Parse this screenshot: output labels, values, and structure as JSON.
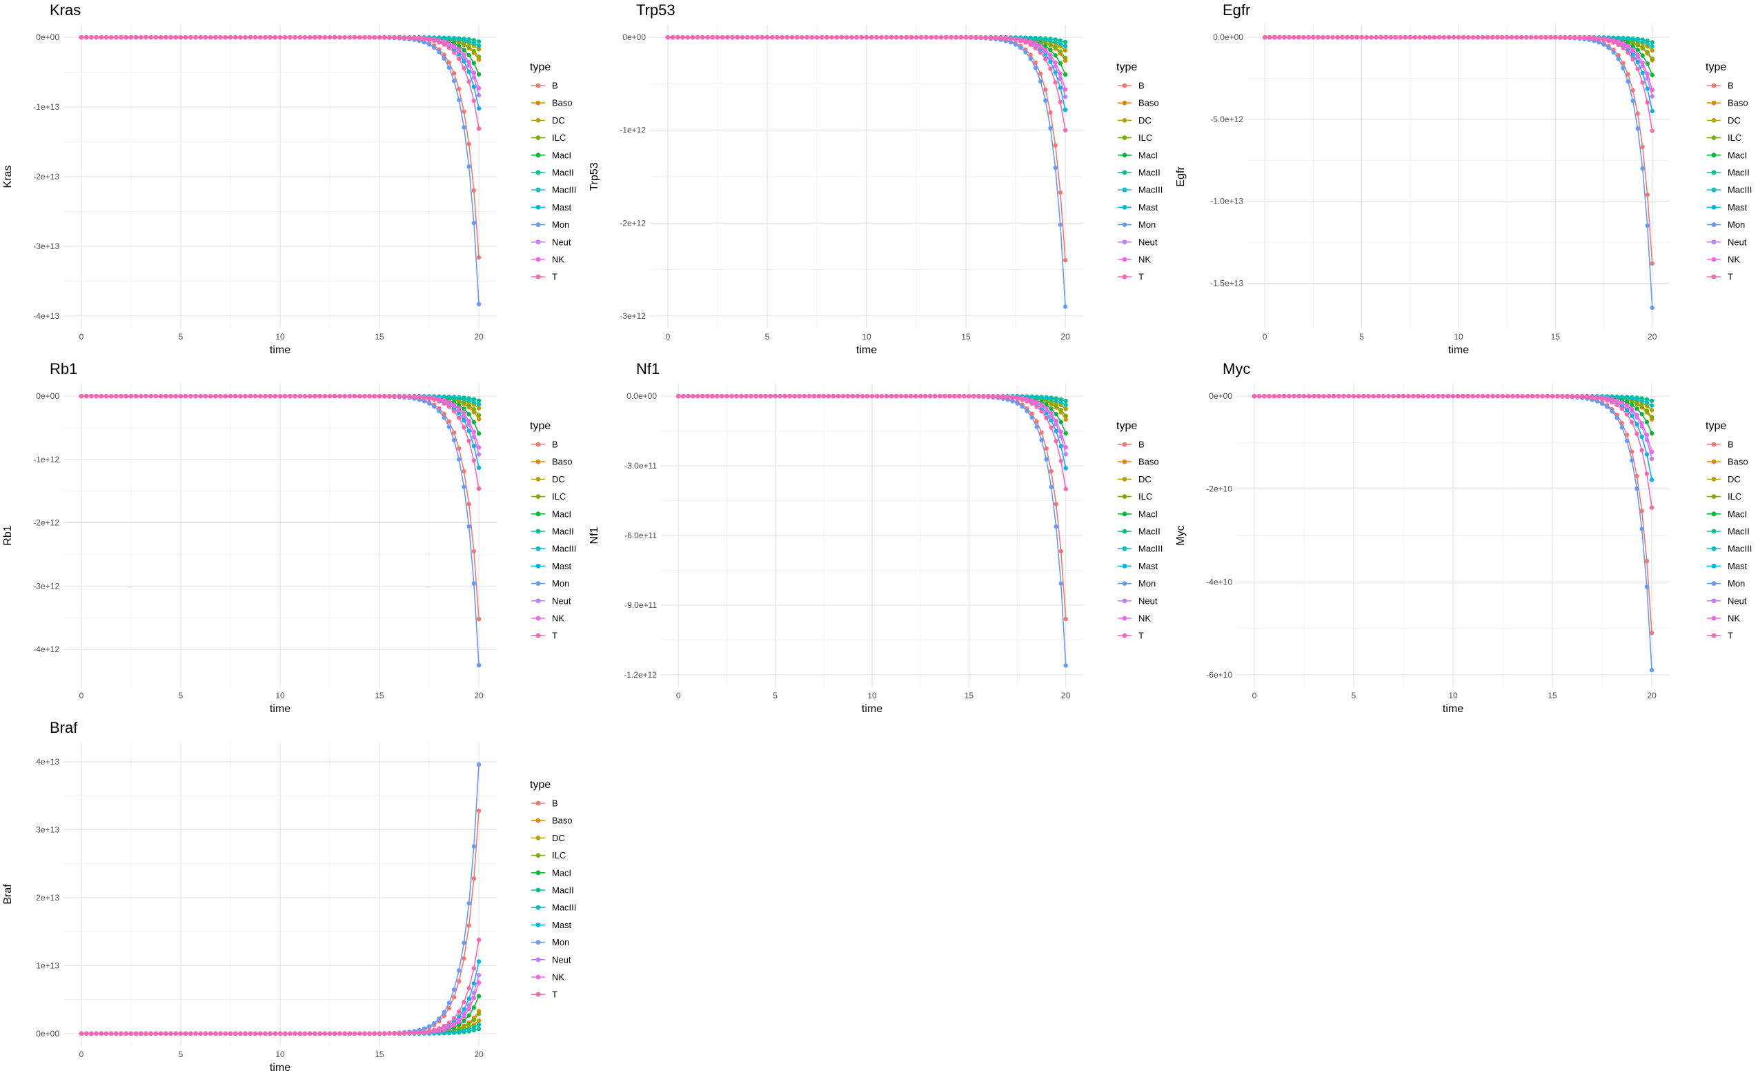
{
  "chart_data": [
    {
      "type": "line",
      "title": "Kras",
      "xlabel": "time",
      "ylabel": "Kras",
      "xlim": [
        0,
        20
      ],
      "xticks": [
        "0",
        "5",
        "10",
        "15",
        "20"
      ],
      "ylim": [
        -40000000000000,
        0
      ],
      "yticks": [
        0,
        -10000000000000,
        -20000000000000,
        -30000000000000,
        -40000000000000
      ],
      "ytick_labels": [
        "0e+00",
        "-1e+13",
        "-2e+13",
        "-3e+13",
        "-4e+13"
      ],
      "legend_title": "type",
      "categories": [
        "B",
        "Baso",
        "DC",
        "ILC",
        "MacI",
        "MacII",
        "MacIII",
        "Mast",
        "Mon",
        "Neut",
        "NK",
        "T"
      ],
      "final_values": [
        -31600000000000,
        -3200000000000,
        -1700000000000,
        -2800000000000,
        -5300000000000,
        -600000000000,
        -1200000000000,
        -10200000000000,
        -38300000000000,
        -8300000000000,
        -7300000000000,
        -13100000000000
      ]
    },
    {
      "type": "line",
      "title": "Trp53",
      "xlabel": "time",
      "ylabel": "Trp53",
      "xlim": [
        0,
        20
      ],
      "xticks": [
        "0",
        "5",
        "10",
        "15",
        "20"
      ],
      "ylim": [
        -3000000000000,
        0
      ],
      "yticks": [
        0,
        -1000000000000,
        -2000000000000,
        -3000000000000
      ],
      "ytick_labels": [
        "0e+00",
        "-1e+12",
        "-2e+12",
        "-3e+12"
      ],
      "legend_title": "type",
      "categories": [
        "B",
        "Baso",
        "DC",
        "ILC",
        "MacI",
        "MacII",
        "MacIII",
        "Mast",
        "Mon",
        "Neut",
        "NK",
        "T"
      ],
      "final_values": [
        -2400000000000,
        -250000000000,
        -140000000000,
        -220000000000,
        -400000000000,
        -50000000000,
        -95000000000,
        -780000000000,
        -2900000000000,
        -640000000000,
        -560000000000,
        -1000000000000
      ]
    },
    {
      "type": "line",
      "title": "Egfr",
      "xlabel": "time",
      "ylabel": "Egfr",
      "xlim": [
        0,
        20
      ],
      "xticks": [
        "0",
        "5",
        "10",
        "15",
        "20"
      ],
      "ylim": [
        -17000000000000,
        0
      ],
      "yticks": [
        0,
        -5000000000000,
        -10000000000000,
        -15000000000000
      ],
      "ytick_labels": [
        "0.0e+00",
        "-5.0e+12",
        "-1.0e+13",
        "-1.5e+13"
      ],
      "legend_title": "type",
      "categories": [
        "B",
        "Baso",
        "DC",
        "ILC",
        "MacI",
        "MacII",
        "MacIII",
        "Mast",
        "Mon",
        "Neut",
        "NK",
        "T"
      ],
      "final_values": [
        -13800000000000,
        -1400000000000,
        -800000000000,
        -1300000000000,
        -2300000000000,
        -300000000000,
        -550000000000,
        -4500000000000,
        -16500000000000,
        -3600000000000,
        -3200000000000,
        -5700000000000
      ]
    },
    {
      "type": "line",
      "title": "Rb1",
      "xlabel": "time",
      "ylabel": "Rb1",
      "xlim": [
        0,
        20
      ],
      "xticks": [
        "0",
        "5",
        "10",
        "15",
        "20"
      ],
      "ylim": [
        -4400000000000,
        0
      ],
      "yticks": [
        0,
        -1000000000000,
        -2000000000000,
        -3000000000000,
        -4000000000000
      ],
      "ytick_labels": [
        "0e+00",
        "-1e+12",
        "-2e+12",
        "-3e+12",
        "-4e+12"
      ],
      "legend_title": "type",
      "categories": [
        "B",
        "Baso",
        "DC",
        "ILC",
        "MacI",
        "MacII",
        "MacIII",
        "Mast",
        "Mon",
        "Neut",
        "NK",
        "T"
      ],
      "final_values": [
        -3520000000000,
        -360000000000,
        -190000000000,
        -300000000000,
        -590000000000,
        -70000000000,
        -130000000000,
        -1130000000000,
        -4250000000000,
        -920000000000,
        -810000000000,
        -1460000000000
      ]
    },
    {
      "type": "line",
      "title": "Nf1",
      "xlabel": "time",
      "ylabel": "Nf1",
      "xlim": [
        0,
        20
      ],
      "xticks": [
        "0",
        "5",
        "10",
        "15",
        "20"
      ],
      "ylim": [
        -1200000000000,
        0
      ],
      "yticks": [
        0,
        -300000000000,
        -600000000000,
        -900000000000,
        -1200000000000
      ],
      "ytick_labels": [
        "0.0e+00",
        "-3.0e+11",
        "-6.0e+11",
        "-9.0e+11",
        "-1.2e+12"
      ],
      "legend_title": "type",
      "categories": [
        "B",
        "Baso",
        "DC",
        "ILC",
        "MacI",
        "MacII",
        "MacIII",
        "Mast",
        "Mon",
        "Neut",
        "NK",
        "T"
      ],
      "final_values": [
        -960000000000,
        -100000000000,
        -55000000000,
        -85000000000,
        -160000000000,
        -20000000000,
        -38000000000,
        -310000000000,
        -1160000000000,
        -250000000000,
        -220000000000,
        -400000000000
      ]
    },
    {
      "type": "line",
      "title": "Myc",
      "xlabel": "time",
      "ylabel": "Myc",
      "xlim": [
        0,
        20
      ],
      "xticks": [
        "0",
        "5",
        "10",
        "15",
        "20"
      ],
      "ylim": [
        -60000000000,
        0
      ],
      "yticks": [
        0,
        -20000000000,
        -40000000000,
        -60000000000
      ],
      "ytick_labels": [
        "0e+00",
        "-2e+10",
        "-4e+10",
        "-6e+10"
      ],
      "legend_title": "type",
      "categories": [
        "B",
        "Baso",
        "DC",
        "ILC",
        "MacI",
        "MacII",
        "MacIII",
        "Mast",
        "Mon",
        "Neut",
        "NK",
        "T"
      ],
      "final_values": [
        -51000000000,
        -5000000000,
        -3000000000,
        -4500000000,
        -8000000000,
        -1000000000,
        -2000000000,
        -18000000000,
        -59000000000,
        -13500000000,
        -12000000000,
        -24000000000
      ]
    },
    {
      "type": "line",
      "title": "Braf",
      "xlabel": "time",
      "ylabel": "Braf",
      "xlim": [
        0,
        20
      ],
      "xticks": [
        "0",
        "5",
        "10",
        "15",
        "20"
      ],
      "ylim": [
        0,
        41000000000000
      ],
      "yticks": [
        0,
        10000000000000,
        20000000000000,
        30000000000000,
        40000000000000
      ],
      "ytick_labels": [
        "0e+00",
        "1e+13",
        "2e+13",
        "3e+13",
        "4e+13"
      ],
      "legend_title": "type",
      "categories": [
        "B",
        "Baso",
        "DC",
        "ILC",
        "MacI",
        "MacII",
        "MacIII",
        "Mast",
        "Mon",
        "Neut",
        "NK",
        "T"
      ],
      "final_values": [
        32800000000000,
        3300000000000,
        1900000000000,
        2900000000000,
        5500000000000,
        700000000000,
        1300000000000,
        10600000000000,
        39600000000000,
        8600000000000,
        7500000000000,
        13800000000000
      ]
    }
  ],
  "colors": [
    "#F8766D",
    "#DE8C00",
    "#B79F00",
    "#7CAE00",
    "#00BA38",
    "#00C08B",
    "#00BFC4",
    "#00B4F0",
    "#619CFF",
    "#C77CFF",
    "#F564E3",
    "#FF64B0"
  ],
  "series_shape": {
    "n_points": 81,
    "t_start": 0,
    "t_step": 0.25,
    "growth_rate": 1.45
  }
}
